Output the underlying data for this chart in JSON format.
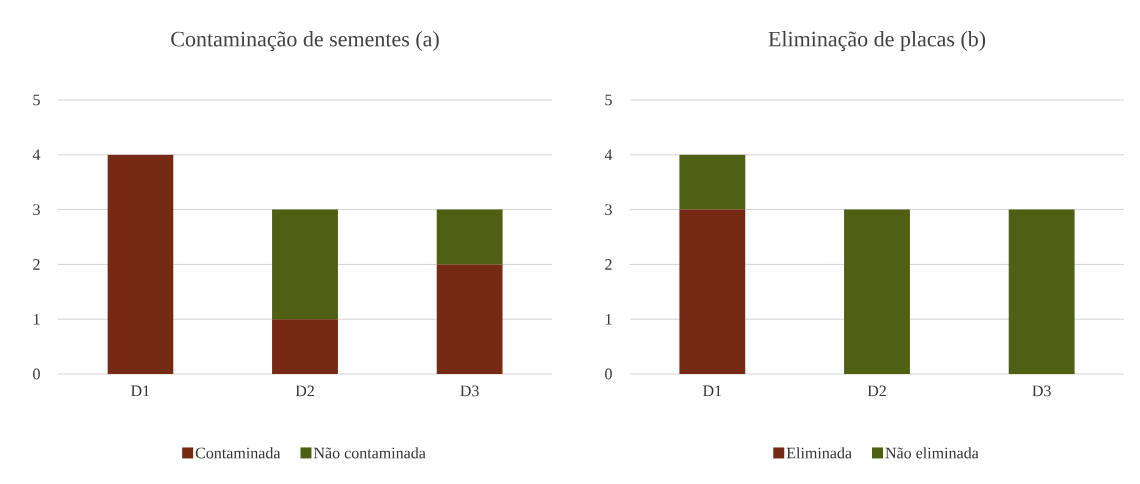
{
  "chart_data": [
    {
      "type": "bar",
      "title": "Contaminação de sementes (a)",
      "stacked": true,
      "categories": [
        "D1",
        "D2",
        "D3"
      ],
      "series": [
        {
          "name": "Contaminada",
          "color": "#772a13",
          "values": [
            4,
            1,
            2
          ]
        },
        {
          "name": "Não contaminada",
          "color": "#4f5f14",
          "values": [
            0,
            2,
            1
          ]
        }
      ],
      "ylim": [
        0,
        5
      ],
      "yticks": [
        0,
        1,
        2,
        3,
        4,
        5
      ],
      "grid": "y",
      "legend": "bottom"
    },
    {
      "type": "bar",
      "title": "Eliminação de placas (b)",
      "stacked": true,
      "categories": [
        "D1",
        "D2",
        "D3"
      ],
      "series": [
        {
          "name": "Eliminada",
          "color": "#772a13",
          "values": [
            3,
            0,
            0
          ]
        },
        {
          "name": "Não eliminada",
          "color": "#4f5f14",
          "values": [
            1,
            3,
            3
          ]
        }
      ],
      "ylim": [
        0,
        5
      ],
      "yticks": [
        0,
        1,
        2,
        3,
        4,
        5
      ],
      "grid": "y",
      "legend": "bottom"
    }
  ]
}
